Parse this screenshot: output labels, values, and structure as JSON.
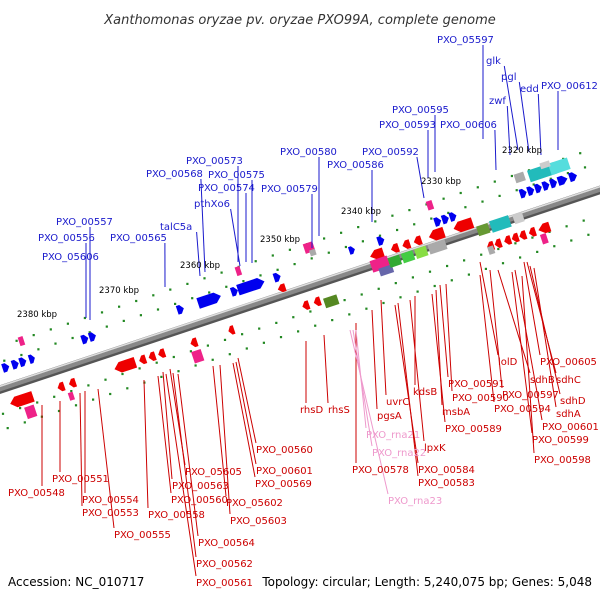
{
  "title": "Xanthomonas oryzae pv. oryzae PXO99A, complete genome",
  "footer": {
    "accession": "Accession: NC_010717",
    "summary": "Topology: circular; Length: 5,240,075 bp; Genes: 5,048"
  },
  "colors": {
    "forward_label": "#1a1acc",
    "reverse_label": "#cc0000",
    "rna_label": "#ee99cc",
    "forward_gene": "#0000ee",
    "reverse_gene": "#ee0000",
    "backbone": "#888888",
    "tick_mark": "#228822"
  },
  "ticks": [
    {
      "id": "t2380",
      "text": "2380 kbp"
    },
    {
      "id": "t2370",
      "text": "2370 kbp"
    },
    {
      "id": "t2360",
      "text": "2360 kbp"
    },
    {
      "id": "t2350",
      "text": "2350 kbp"
    },
    {
      "id": "t2340",
      "text": "2340 kbp"
    },
    {
      "id": "t2330",
      "text": "2330 kbp"
    },
    {
      "id": "t2320",
      "text": "2320 kbp"
    }
  ],
  "forward_labels": [
    {
      "id": "f01",
      "text": "PXO_05597"
    },
    {
      "id": "f02",
      "text": "glk"
    },
    {
      "id": "f03",
      "text": "pgl"
    },
    {
      "id": "f04",
      "text": "edd"
    },
    {
      "id": "f05",
      "text": "PXO_00612"
    },
    {
      "id": "f06",
      "text": "zwf"
    },
    {
      "id": "f07",
      "text": "PXO_00595"
    },
    {
      "id": "f08",
      "text": "PXO_00593"
    },
    {
      "id": "f09",
      "text": "PXO_00606"
    },
    {
      "id": "f10",
      "text": "PXO_00580"
    },
    {
      "id": "f11",
      "text": "PXO_00592"
    },
    {
      "id": "f12",
      "text": "PXO_00573"
    },
    {
      "id": "f13",
      "text": "PXO_00586"
    },
    {
      "id": "f14",
      "text": "PXO_00568"
    },
    {
      "id": "f15",
      "text": "PXO_00575"
    },
    {
      "id": "f16",
      "text": "PXO_00574"
    },
    {
      "id": "f17",
      "text": "PXO_00579"
    },
    {
      "id": "f18",
      "text": "pthXo6"
    },
    {
      "id": "f19",
      "text": "PXO_00557"
    },
    {
      "id": "f20",
      "text": "talC5a"
    },
    {
      "id": "f21",
      "text": "PXO_00556"
    },
    {
      "id": "f22",
      "text": "PXO_00565"
    },
    {
      "id": "f23",
      "text": "PXO_05606"
    }
  ],
  "reverse_labels": [
    {
      "id": "r01",
      "text": "lolD"
    },
    {
      "id": "r02",
      "text": "PXO_00605"
    },
    {
      "id": "r03",
      "text": "sdhB"
    },
    {
      "id": "r04",
      "text": "sdhC"
    },
    {
      "id": "r05",
      "text": "PXO_00597"
    },
    {
      "id": "r06",
      "text": "sdhD"
    },
    {
      "id": "r07",
      "text": "PXO_00591"
    },
    {
      "id": "r08",
      "text": "PXO_00594"
    },
    {
      "id": "r09",
      "text": "sdhA"
    },
    {
      "id": "r10",
      "text": "kdsB"
    },
    {
      "id": "r11",
      "text": "PXO_00590"
    },
    {
      "id": "r12",
      "text": "PXO_00601"
    },
    {
      "id": "r13",
      "text": "uvrC"
    },
    {
      "id": "r14",
      "text": "msbA"
    },
    {
      "id": "r15",
      "text": "PXO_00599"
    },
    {
      "id": "r16",
      "text": "rhsD"
    },
    {
      "id": "r17",
      "text": "rhsS"
    },
    {
      "id": "r18",
      "text": "pgsA"
    },
    {
      "id": "r19",
      "text": "PXO_00589"
    },
    {
      "id": "r20",
      "text": "lpxK"
    },
    {
      "id": "r21",
      "text": "PXO_00598"
    },
    {
      "id": "r22",
      "text": "PXO_00560"
    },
    {
      "id": "r23",
      "text": "PXO_00601"
    },
    {
      "id": "r24",
      "text": "PXO_05605"
    },
    {
      "id": "r25",
      "text": "PXO_00569"
    },
    {
      "id": "r26",
      "text": "PXO_00584"
    },
    {
      "id": "r27",
      "text": "PXO_00551"
    },
    {
      "id": "r28",
      "text": "PXO_00563"
    },
    {
      "id": "r29",
      "text": "PXO_00578"
    },
    {
      "id": "r30",
      "text": "PXO_00583"
    },
    {
      "id": "r31",
      "text": "PXO_00548"
    },
    {
      "id": "r32",
      "text": "PXO_00554"
    },
    {
      "id": "r33",
      "text": "PXO_00560"
    },
    {
      "id": "r34",
      "text": "PXO_05602"
    },
    {
      "id": "r35",
      "text": "PXO_00553"
    },
    {
      "id": "r36",
      "text": "PXO_00558"
    },
    {
      "id": "r37",
      "text": "PXO_05603"
    },
    {
      "id": "r38",
      "text": "PXO_00555"
    },
    {
      "id": "r39",
      "text": "PXO_00564"
    },
    {
      "id": "r40",
      "text": "PXO_00562"
    },
    {
      "id": "r41",
      "text": "PXO_00561"
    }
  ],
  "rna_labels": [
    {
      "id": "n1",
      "text": "PXO_rna21"
    },
    {
      "id": "n2",
      "text": "PXO_rna22"
    },
    {
      "id": "n3",
      "text": "PXO_rna23"
    }
  ]
}
